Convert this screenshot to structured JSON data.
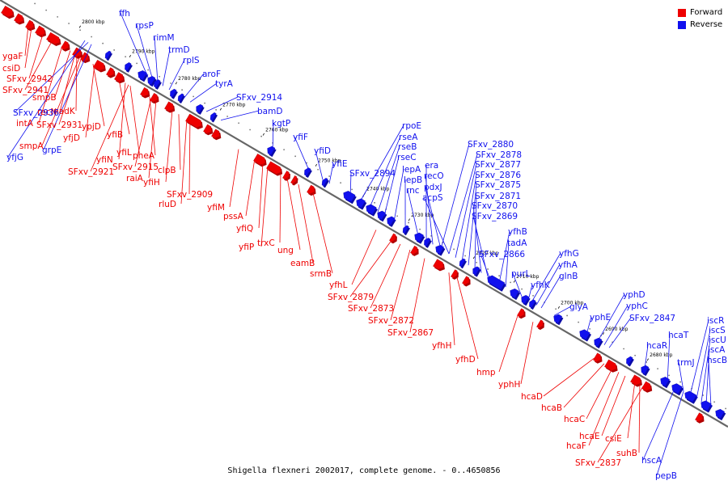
{
  "map": {
    "title": "Shigella flexneri 2002017, complete genome. - 0..4650856",
    "colors": {
      "forward": "#ee0000",
      "reverse": "#1010ee",
      "axis": "#666666"
    },
    "ticks": [
      "2800 kbp",
      "2790 kbp",
      "2780 kbp",
      "2770 kbp",
      "2760 kbp",
      "2750 kbp",
      "2740 kbp",
      "2730 kbp",
      "2720 kbp",
      "2710 kbp",
      "2700 kbp",
      "2690 kbp",
      "2680 kbp"
    ]
  },
  "legend": {
    "forward": "Forward",
    "reverse": "Reverse"
  },
  "genes": {
    "forward": [
      "ygaF",
      "csiD",
      "SFxv_2942",
      "SFxv_2941",
      "smpB",
      "intA",
      "nadK",
      "recN",
      "SFxv_2931",
      "smpA",
      "ypjD",
      "yfjD",
      "yfiB",
      "yfiN",
      "yfiL",
      "pheA",
      "SFxv_2921",
      "SFxv_2915",
      "raiA",
      "clpB",
      "yfiH",
      "SFxv_2909",
      "rluD",
      "yfiM",
      "pssA",
      "yfiQ",
      "yfiP",
      "trxC",
      "ung",
      "eamB",
      "srmB",
      "yfhL",
      "SFxv_2879",
      "SFxv_2873",
      "SFxv_2872",
      "SFxv_2867",
      "yfhH",
      "yfhD",
      "hmp",
      "yphH",
      "hcaD",
      "hcaB",
      "hcaC",
      "hcaE",
      "hcaF",
      "csiE",
      "suhB",
      "SFxv_2837"
    ],
    "reverse": [
      "ffh",
      "rpsP",
      "rimM",
      "trmD",
      "rplS",
      "aroF",
      "tyrA",
      "SFxv_2914",
      "bamD",
      "kgtP",
      "yfiF",
      "yfiD",
      "yfiE",
      "SFxv_2894",
      "rpoE",
      "rseA",
      "rseB",
      "rseC",
      "lepA",
      "lepB",
      "rnc",
      "era",
      "recO",
      "pdxJ",
      "acpS",
      "SFxv_2880",
      "SFxv_2878",
      "SFxv_2877",
      "SFxv_2876",
      "SFxv_2875",
      "SFxv_2871",
      "SFxv_2870",
      "SFxv_2869",
      "yfhB",
      "tadA",
      "SFxv_2866",
      "purL",
      "yfhG",
      "yfhA",
      "glnB",
      "yfhK",
      "glyA",
      "yphD",
      "yphE",
      "yphC",
      "SFxv_2847",
      "hcaT",
      "hcaR",
      "trmJ",
      "iscR",
      "iscS",
      "iscU",
      "iscA",
      "hscB",
      "hscA",
      "pepB",
      "yfjG",
      "grpE",
      "SFxv_2936"
    ]
  }
}
